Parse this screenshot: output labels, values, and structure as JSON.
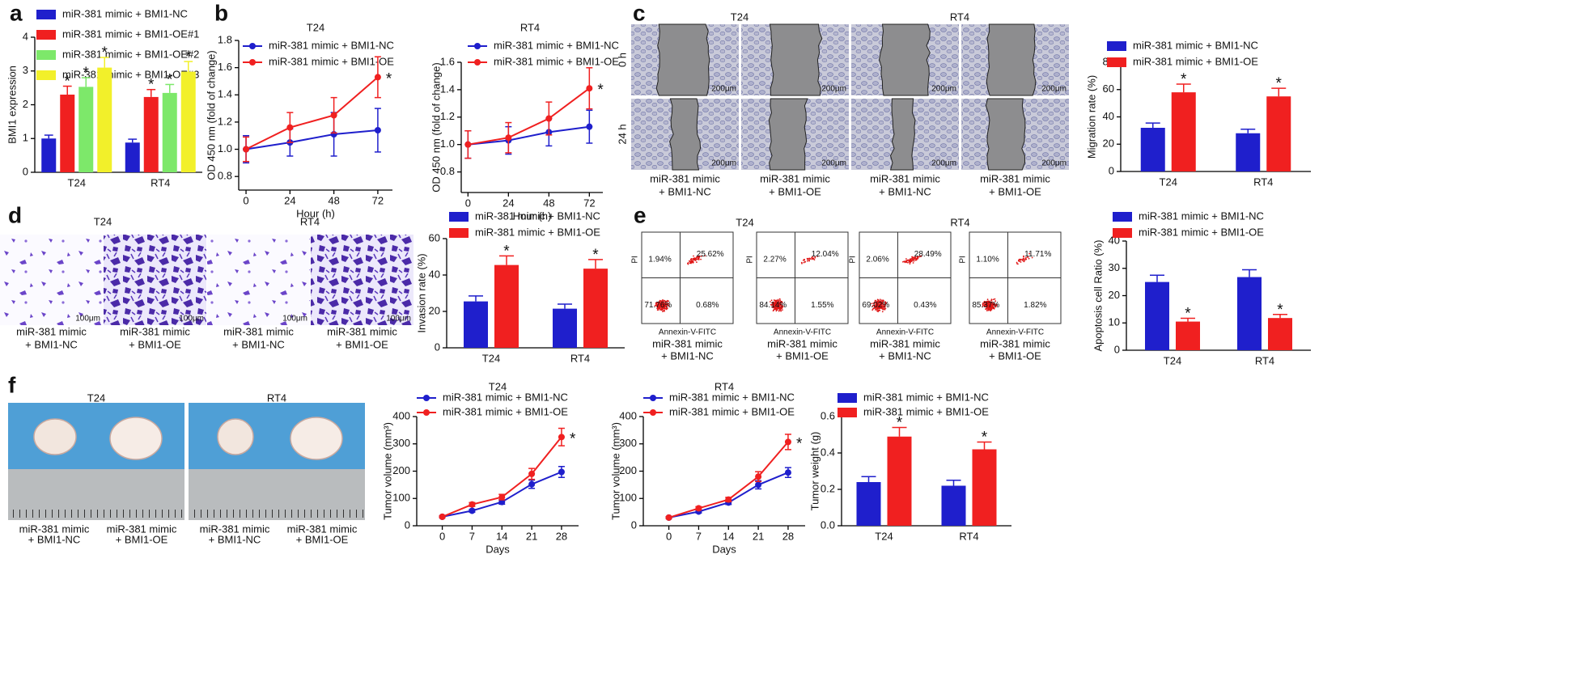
{
  "figure": {
    "panel_labels": [
      "a",
      "b",
      "c",
      "d",
      "e",
      "f"
    ],
    "migration_images": {
      "groups": [
        "T24",
        "RT4"
      ],
      "rows": [
        "0 h",
        "24 h"
      ],
      "scale_bar": "200μm",
      "captions": [
        [
          "miR-381 mimic",
          "+ BMI1-NC"
        ],
        [
          "miR-381 mimic",
          "+ BMI1-OE"
        ],
        [
          "miR-381 mimic",
          "+ BMI1-NC"
        ],
        [
          "miR-381 mimic",
          "+ BMI1-OE"
        ]
      ]
    },
    "invasion_images": {
      "groups": [
        "T24",
        "RT4"
      ],
      "scale_bar": "100μm",
      "captions": [
        [
          "miR-381 mimic",
          "+ BMI1-NC"
        ],
        [
          "miR-381 mimic",
          "+ BMI1-OE"
        ],
        [
          "miR-381 mimic",
          "+ BMI1-NC"
        ],
        [
          "miR-381 mimic",
          "+ BMI1-OE"
        ]
      ]
    },
    "flow_plots": {
      "groups": [
        "T24",
        "RT4"
      ],
      "x_label": "Annexin-V-FITC",
      "y_label": "PI",
      "quadrants": [
        [
          "1.94%",
          "25.62%",
          "71.76%",
          "0.68%"
        ],
        [
          "2.27%",
          "12.04%",
          "84.14%",
          "1.55%"
        ],
        [
          "2.06%",
          "28.49%",
          "69.02%",
          "0.43%"
        ],
        [
          "1.10%",
          "11.71%",
          "85.37%",
          "1.82%"
        ]
      ],
      "captions": [
        [
          "miR-381 mimic",
          "+ BMI1-NC"
        ],
        [
          "miR-381 mimic",
          "+ BMI1-OE"
        ],
        [
          "miR-381 mimic",
          "+ BMI1-NC"
        ],
        [
          "miR-381 mimic",
          "+ BMI1-OE"
        ]
      ]
    },
    "tumor_photos": {
      "groups": [
        "T24",
        "RT4"
      ],
      "captions": [
        [
          "miR-381 mimic",
          "+ BMI1-NC"
        ],
        [
          "miR-381 mimic",
          "+ BMI1-OE"
        ],
        [
          "miR-381 mimic",
          "+ BMI1-NC"
        ],
        [
          "miR-381 mimic",
          "+ BMI1-OE"
        ]
      ]
    }
  },
  "chart_data": [
    {
      "type": "bar",
      "ylabel": "BMI1 expression",
      "categories": [
        "T24",
        "RT4"
      ],
      "series": [
        {
          "name": "miR-381 mimic + BMI1-NC",
          "color": "#1f1fcc",
          "values": [
            1.0,
            0.88
          ],
          "errors": [
            0.1,
            0.1
          ]
        },
        {
          "name": "miR-381 mimic + BMI1-OE#1",
          "color": "#f02020",
          "values": [
            2.3,
            2.23
          ],
          "errors": [
            0.25,
            0.22
          ],
          "significance": [
            "*",
            "*"
          ]
        },
        {
          "name": "miR-381 mimic + BMI1-OE#2",
          "color": "#7de86a",
          "values": [
            2.53,
            2.35
          ],
          "errors": [
            0.27,
            0.25
          ],
          "significance": [
            "*",
            "*"
          ]
        },
        {
          "name": "miR-381 mimic + BMI1-OE#3",
          "color": "#f2f02a",
          "values": [
            3.1,
            2.98
          ],
          "errors": [
            0.3,
            0.3
          ],
          "significance": [
            "*",
            "*"
          ]
        }
      ],
      "ylim": [
        0,
        4
      ],
      "yticks": [
        0,
        1,
        2,
        3,
        4
      ]
    },
    {
      "type": "line",
      "title": "T24",
      "xlabel": "Hour (h)",
      "ylabel": "OD 450 nm (fold of change)",
      "x": [
        0,
        24,
        48,
        72
      ],
      "series": [
        {
          "name": "miR-381 mimic + BMI1-NC",
          "color": "#1f1fcc",
          "values": [
            1.0,
            1.05,
            1.11,
            1.14
          ],
          "errors": [
            0.1,
            0.1,
            0.16,
            0.16
          ]
        },
        {
          "name": "miR-381 mimic + BMI1-OE",
          "color": "#f02020",
          "values": [
            1.0,
            1.16,
            1.25,
            1.53
          ],
          "errors": [
            0.09,
            0.11,
            0.13,
            0.15
          ],
          "significance": [
            null,
            null,
            null,
            "*"
          ]
        }
      ],
      "xlim": [
        -4,
        80
      ],
      "xticks": [
        0,
        24,
        48,
        72
      ],
      "ylim": [
        0.7,
        1.8
      ],
      "yticks": [
        0.8,
        {
          "value": 1,
          "label": "1.0"
        },
        1.2,
        1.4,
        1.6,
        1.8
      ]
    },
    {
      "type": "line",
      "title": "RT4",
      "xlabel": "Hour (h)",
      "ylabel": "OD 450 nm (fold of change)",
      "x": [
        0,
        24,
        48,
        72
      ],
      "series": [
        {
          "name": "miR-381 mimic + BMI1-NC",
          "color": "#1f1fcc",
          "values": [
            1.0,
            1.03,
            1.09,
            1.13
          ],
          "errors": [
            0.1,
            0.1,
            0.1,
            0.12
          ]
        },
        {
          "name": "miR-381 mimic + BMI1-OE",
          "color": "#f02020",
          "values": [
            1.0,
            1.05,
            1.19,
            1.41
          ],
          "errors": [
            0.1,
            0.11,
            0.12,
            0.15
          ],
          "significance": [
            null,
            null,
            null,
            "*"
          ]
        }
      ],
      "xlim": [
        -4,
        80
      ],
      "xticks": [
        0,
        24,
        48,
        72
      ],
      "ylim": [
        0.65,
        1.6
      ],
      "yticks": [
        0.8,
        {
          "value": 1,
          "label": "1.0"
        },
        1.2,
        1.4,
        1.6
      ]
    },
    {
      "type": "bar",
      "ylabel": "Migration rate (%)",
      "categories": [
        "T24",
        "RT4"
      ],
      "series": [
        {
          "name": "miR-381 mimic + BMI1-NC",
          "color": "#1f1fcc",
          "values": [
            32,
            28
          ],
          "errors": [
            3.5,
            3
          ]
        },
        {
          "name": "miR-381 mimic + BMI1-OE",
          "color": "#f02020",
          "values": [
            58,
            55
          ],
          "errors": [
            6,
            6
          ],
          "significance": [
            "*",
            "*"
          ]
        }
      ],
      "ylim": [
        0,
        80
      ],
      "yticks": [
        0,
        20,
        40,
        60,
        80
      ]
    },
    {
      "type": "bar",
      "ylabel": "Invasion rate (%)",
      "categories": [
        "T24",
        "RT4"
      ],
      "series": [
        {
          "name": "miR-381 mimic + BMI1-NC",
          "color": "#1f1fcc",
          "values": [
            25.5,
            21.5
          ],
          "errors": [
            3,
            2.5
          ]
        },
        {
          "name": "miR-381 mimic + BMI1-OE",
          "color": "#f02020",
          "values": [
            45.5,
            43.5
          ],
          "errors": [
            5,
            5
          ],
          "significance": [
            "*",
            "*"
          ]
        }
      ],
      "ylim": [
        0,
        60
      ],
      "yticks": [
        0,
        20,
        40,
        60
      ]
    },
    {
      "type": "bar",
      "ylabel": "Apoptosis cell Ratio (%)",
      "categories": [
        "T24",
        "RT4"
      ],
      "series": [
        {
          "name": "miR-381 mimic + BMI1-NC",
          "color": "#1f1fcc",
          "values": [
            25,
            26.8
          ],
          "errors": [
            2.5,
            2.7
          ]
        },
        {
          "name": "miR-381 mimic + BMI1-OE",
          "color": "#f02020",
          "values": [
            10.5,
            11.8
          ],
          "errors": [
            1.2,
            1.3
          ],
          "significance": [
            "*",
            "*"
          ]
        }
      ],
      "ylim": [
        0,
        40
      ],
      "yticks": [
        0,
        10,
        20,
        30,
        40
      ]
    },
    {
      "type": "line",
      "title": "T24",
      "xlabel": "Days",
      "ylabel": "Tumor volume (mm³)",
      "x": [
        0,
        7,
        14,
        21,
        28
      ],
      "series": [
        {
          "name": "miR-381 mimic + BMI1-NC",
          "color": "#1f1fcc",
          "values": [
            33,
            55,
            87,
            152,
            197
          ],
          "errors": [
            3,
            5,
            8,
            15,
            20
          ]
        },
        {
          "name": "miR-381 mimic + BMI1-OE",
          "color": "#f02020",
          "values": [
            33,
            78,
            105,
            190,
            325
          ],
          "errors": [
            3,
            7,
            10,
            20,
            32
          ],
          "significance": [
            null,
            null,
            null,
            null,
            "*"
          ]
        }
      ],
      "xlim": [
        -6,
        32
      ],
      "xticks": [
        0,
        7,
        14,
        21,
        28
      ],
      "ylim": [
        0,
        400
      ],
      "yticks": [
        0,
        100,
        200,
        300,
        400
      ]
    },
    {
      "type": "line",
      "title": "RT4",
      "xlabel": "Days",
      "ylabel": "Tumor volume (mm³)",
      "x": [
        0,
        7,
        14,
        21,
        28
      ],
      "series": [
        {
          "name": "miR-381 mimic + BMI1-NC",
          "color": "#1f1fcc",
          "values": [
            30,
            52,
            85,
            150,
            195
          ],
          "errors": [
            3,
            5,
            7,
            15,
            18
          ]
        },
        {
          "name": "miR-381 mimic + BMI1-OE",
          "color": "#f02020",
          "values": [
            30,
            64,
            96,
            180,
            307
          ],
          "errors": [
            3,
            6,
            8,
            18,
            28
          ],
          "significance": [
            null,
            null,
            null,
            null,
            "*"
          ]
        }
      ],
      "xlim": [
        -6,
        32
      ],
      "xticks": [
        0,
        7,
        14,
        21,
        28
      ],
      "ylim": [
        0,
        400
      ],
      "yticks": [
        0,
        100,
        200,
        300,
        400
      ]
    },
    {
      "type": "bar",
      "ylabel": "Tumor weight (g)",
      "categories": [
        "T24",
        "RT4"
      ],
      "series": [
        {
          "name": "miR-381 mimic + BMI1-NC",
          "color": "#1f1fcc",
          "values": [
            0.24,
            0.22
          ],
          "errors": [
            0.03,
            0.03
          ]
        },
        {
          "name": "miR-381 mimic + BMI1-OE",
          "color": "#f02020",
          "values": [
            0.49,
            0.42
          ],
          "errors": [
            0.05,
            0.04
          ],
          "significance": [
            "*",
            "*"
          ]
        }
      ],
      "ylim": [
        0,
        0.6
      ],
      "yticks": [
        {
          "value": 0,
          "label": "0.0"
        },
        0.2,
        0.4,
        0.6
      ]
    }
  ]
}
